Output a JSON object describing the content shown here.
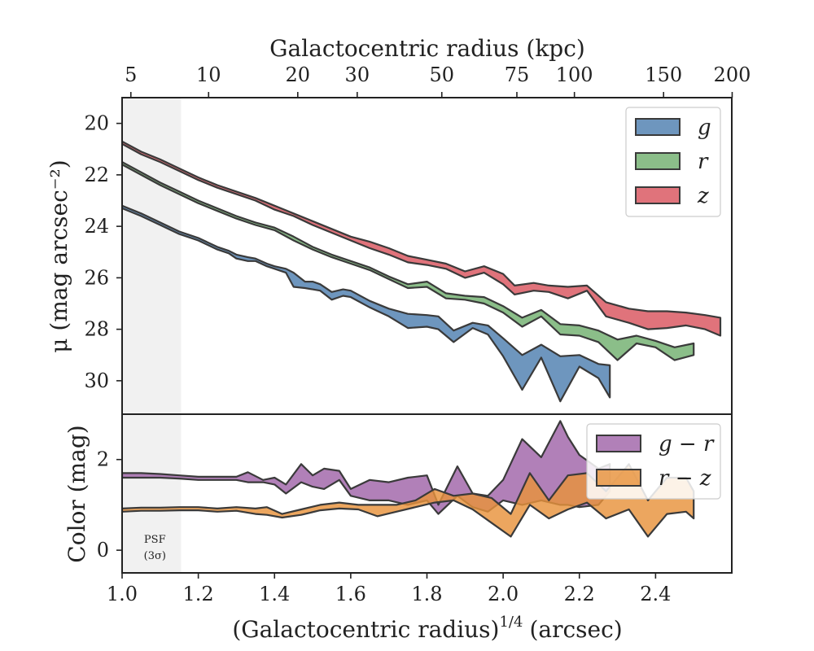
{
  "chart_data": [
    {
      "type": "area",
      "panel": "surface-brightness",
      "xlabel_bottom": "(Galactocentric radius)",
      "xlabel_bottom_sup": "1/4",
      "xlabel_bottom_unit": "(arcsec)",
      "xlabel_top": "Galactocentric radius (kpc)",
      "ylabel": "μ (mag arcsec⁻²)",
      "xlim": [
        1.0,
        2.6
      ],
      "ylim": [
        31.3,
        19.0
      ],
      "y_inverted": true,
      "x_ticks": [
        1.0,
        1.2,
        1.4,
        1.6,
        1.8,
        2.0,
        2.2,
        2.4
      ],
      "x_tick_labels": [
        "1.0",
        "1.2",
        "1.4",
        "1.6",
        "1.8",
        "2.0",
        "2.2",
        "2.4"
      ],
      "y_ticks": [
        20,
        22,
        24,
        26,
        28,
        30
      ],
      "y_tick_labels": [
        "20",
        "22",
        "24",
        "26",
        "28",
        "30"
      ],
      "top_ticks": [
        {
          "label": "5",
          "x": 1.023
        },
        {
          "label": "10",
          "x": 1.227
        },
        {
          "label": "20",
          "x": 1.461
        },
        {
          "label": "30",
          "x": 1.617
        },
        {
          "label": "50",
          "x": 1.839
        },
        {
          "label": "75",
          "x": 2.036
        },
        {
          "label": "100",
          "x": 2.187
        },
        {
          "label": "150",
          "x": 2.421
        },
        {
          "label": "200",
          "x": 2.601
        }
      ],
      "psf_region": {
        "x_min": 1.0,
        "x_max": 1.155,
        "label": "PSF",
        "label2": "(3σ)"
      },
      "legend_position": "top-right",
      "series": [
        {
          "name": "g",
          "color": "#4e7fb0",
          "x": [
            1.0,
            1.05,
            1.1,
            1.15,
            1.2,
            1.25,
            1.28,
            1.3,
            1.33,
            1.35,
            1.38,
            1.4,
            1.43,
            1.45,
            1.48,
            1.5,
            1.52,
            1.55,
            1.58,
            1.6,
            1.65,
            1.7,
            1.75,
            1.8,
            1.83,
            1.87,
            1.92,
            1.96,
            2.0,
            2.05,
            2.1,
            2.15,
            2.2,
            2.25,
            2.28
          ],
          "lower": [
            23.2,
            23.5,
            23.85,
            24.2,
            24.45,
            24.8,
            24.95,
            25.1,
            25.2,
            25.25,
            25.45,
            25.55,
            25.65,
            25.8,
            26.15,
            26.15,
            26.25,
            26.55,
            26.45,
            26.5,
            26.9,
            27.2,
            27.4,
            27.45,
            27.5,
            28.05,
            27.75,
            27.85,
            28.35,
            29.0,
            28.6,
            29.05,
            29.0,
            29.35,
            29.4
          ],
          "upper": [
            23.3,
            23.6,
            23.95,
            24.3,
            24.55,
            24.9,
            25.05,
            25.25,
            25.35,
            25.35,
            25.55,
            25.65,
            25.8,
            26.35,
            26.4,
            26.45,
            26.5,
            26.85,
            26.7,
            26.75,
            27.15,
            27.5,
            27.95,
            27.9,
            28.0,
            28.5,
            27.95,
            28.2,
            29.05,
            30.35,
            29.1,
            30.8,
            29.45,
            29.9,
            30.65
          ]
        },
        {
          "name": "r",
          "color": "#71b06f",
          "x": [
            1.0,
            1.05,
            1.1,
            1.15,
            1.2,
            1.25,
            1.3,
            1.35,
            1.4,
            1.45,
            1.5,
            1.55,
            1.6,
            1.65,
            1.7,
            1.75,
            1.8,
            1.85,
            1.9,
            1.95,
            2.0,
            2.05,
            2.1,
            2.15,
            2.2,
            2.25,
            2.3,
            2.35,
            2.4,
            2.45,
            2.5
          ],
          "lower": [
            21.5,
            21.9,
            22.3,
            22.65,
            23.0,
            23.3,
            23.6,
            23.85,
            24.05,
            24.4,
            24.8,
            25.1,
            25.35,
            25.6,
            25.95,
            26.25,
            26.15,
            26.6,
            26.7,
            26.75,
            27.1,
            27.55,
            27.25,
            27.8,
            27.85,
            28.05,
            28.4,
            28.25,
            28.45,
            28.7,
            28.55
          ],
          "upper": [
            21.6,
            22.0,
            22.4,
            22.75,
            23.1,
            23.4,
            23.7,
            23.95,
            24.15,
            24.55,
            24.9,
            25.2,
            25.45,
            25.7,
            26.05,
            26.4,
            26.35,
            26.8,
            26.85,
            27.0,
            27.35,
            27.9,
            27.5,
            28.2,
            28.25,
            28.5,
            29.2,
            28.55,
            28.7,
            29.2,
            29.0
          ]
        },
        {
          "name": "z",
          "color": "#d9545e",
          "x": [
            1.0,
            1.05,
            1.1,
            1.15,
            1.2,
            1.25,
            1.3,
            1.35,
            1.4,
            1.45,
            1.5,
            1.55,
            1.6,
            1.65,
            1.7,
            1.75,
            1.8,
            1.85,
            1.9,
            1.95,
            2.0,
            2.03,
            2.08,
            2.12,
            2.17,
            2.22,
            2.27,
            2.33,
            2.38,
            2.43,
            2.48,
            2.53,
            2.57
          ],
          "lower": [
            20.7,
            21.1,
            21.4,
            21.75,
            22.1,
            22.4,
            22.65,
            22.9,
            23.2,
            23.5,
            23.8,
            24.1,
            24.4,
            24.6,
            24.85,
            25.15,
            25.3,
            25.45,
            25.75,
            25.55,
            25.85,
            26.3,
            26.2,
            26.3,
            26.35,
            26.3,
            26.95,
            27.2,
            27.3,
            27.3,
            27.35,
            27.45,
            27.55
          ],
          "upper": [
            20.8,
            21.2,
            21.5,
            21.85,
            22.2,
            22.5,
            22.75,
            23.0,
            23.35,
            23.6,
            23.95,
            24.25,
            24.55,
            24.85,
            25.1,
            25.4,
            25.5,
            25.65,
            26.0,
            25.8,
            26.25,
            26.65,
            26.5,
            26.55,
            26.8,
            26.5,
            27.5,
            27.75,
            28.0,
            27.95,
            27.85,
            28.0,
            28.25
          ]
        }
      ]
    },
    {
      "type": "area",
      "panel": "color",
      "ylabel": "Color (mag)",
      "xlim": [
        1.0,
        2.6
      ],
      "ylim": [
        -0.5,
        3.0
      ],
      "y_ticks": [
        0,
        2
      ],
      "y_tick_labels": [
        "0",
        "2"
      ],
      "legend_position": "top-right",
      "series": [
        {
          "name": "g − r",
          "color": "#a064a8",
          "x": [
            1.0,
            1.05,
            1.1,
            1.15,
            1.2,
            1.25,
            1.3,
            1.33,
            1.37,
            1.4,
            1.43,
            1.47,
            1.5,
            1.53,
            1.57,
            1.6,
            1.65,
            1.7,
            1.75,
            1.8,
            1.83,
            1.88,
            1.92,
            1.96,
            2.0,
            2.05,
            2.1,
            2.15,
            2.17,
            2.2,
            2.25,
            2.28
          ],
          "lower": [
            1.6,
            1.6,
            1.6,
            1.58,
            1.55,
            1.55,
            1.55,
            1.5,
            1.5,
            1.45,
            1.25,
            1.5,
            1.4,
            1.35,
            1.55,
            1.2,
            1.1,
            1.1,
            1.0,
            1.1,
            0.8,
            1.2,
            0.95,
            0.85,
            1.1,
            1.0,
            1.1,
            1.0,
            1.0,
            0.95,
            1.0,
            1.3
          ],
          "upper": [
            1.7,
            1.7,
            1.68,
            1.65,
            1.62,
            1.62,
            1.62,
            1.72,
            1.55,
            1.6,
            1.45,
            1.9,
            1.65,
            1.8,
            1.75,
            1.35,
            1.55,
            1.5,
            1.6,
            1.65,
            1.0,
            1.85,
            1.25,
            1.2,
            1.55,
            2.45,
            2.05,
            2.85,
            2.5,
            2.1,
            1.8,
            1.9
          ]
        },
        {
          "name": "r − z",
          "color": "#e8923c",
          "x": [
            1.0,
            1.05,
            1.1,
            1.15,
            1.2,
            1.25,
            1.3,
            1.35,
            1.38,
            1.42,
            1.47,
            1.52,
            1.57,
            1.62,
            1.67,
            1.72,
            1.77,
            1.82,
            1.87,
            1.92,
            1.97,
            2.02,
            2.07,
            2.12,
            2.17,
            2.22,
            2.27,
            2.33,
            2.38,
            2.43,
            2.48,
            2.5
          ],
          "lower": [
            0.85,
            0.87,
            0.87,
            0.88,
            0.88,
            0.85,
            0.87,
            0.8,
            0.78,
            0.72,
            0.78,
            0.88,
            0.92,
            0.9,
            0.75,
            0.85,
            0.95,
            1.05,
            1.1,
            0.9,
            0.6,
            0.3,
            1.0,
            0.7,
            0.9,
            1.05,
            0.7,
            0.9,
            0.3,
            0.8,
            0.85,
            0.7
          ],
          "upper": [
            0.92,
            0.94,
            0.94,
            0.95,
            0.95,
            0.92,
            0.95,
            0.92,
            0.95,
            0.8,
            0.9,
            1.0,
            1.05,
            1.0,
            1.0,
            1.0,
            1.1,
            1.35,
            1.2,
            1.25,
            1.15,
            0.8,
            1.7,
            1.1,
            1.65,
            1.7,
            1.3,
            1.9,
            1.1,
            1.6,
            1.6,
            1.3
          ]
        }
      ]
    }
  ]
}
